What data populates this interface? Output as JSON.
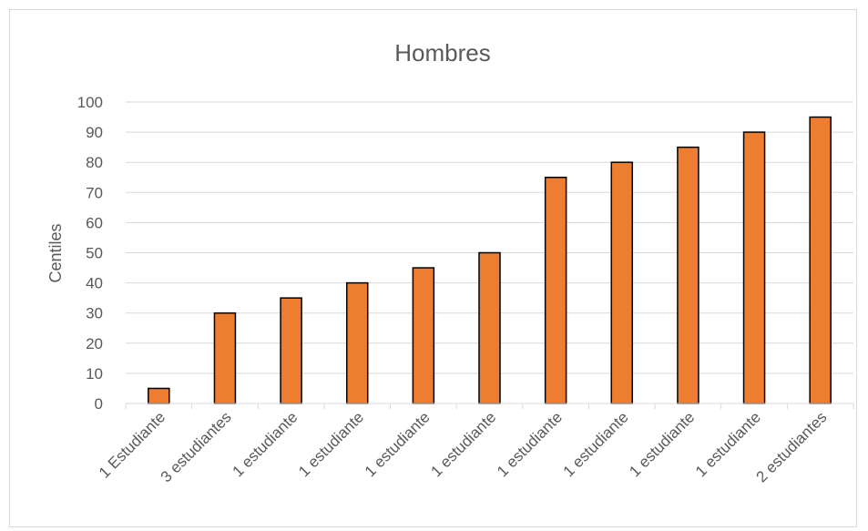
{
  "chart_data": {
    "type": "bar",
    "title": "Hombres",
    "xlabel": "",
    "ylabel": "Centiles",
    "categories": [
      "1 Estudiante",
      "3 estudiantes",
      "1 estudiante",
      "1 estudiante",
      "1 estudiante",
      "1 estudiante",
      "1 estudiante",
      "1 estudiante",
      "1 estudiante",
      "1 estudiante",
      "2 estudiantes"
    ],
    "values": [
      5,
      30,
      35,
      40,
      45,
      50,
      75,
      80,
      85,
      90,
      95
    ],
    "ylim": [
      0,
      100
    ],
    "yticks": [
      0,
      10,
      20,
      30,
      40,
      50,
      60,
      70,
      80,
      90,
      100
    ],
    "grid": true,
    "legend": "none",
    "bar_color": "#ED7D31",
    "bar_edge_color": "#000000",
    "grid_color": "#d9d9d9"
  }
}
